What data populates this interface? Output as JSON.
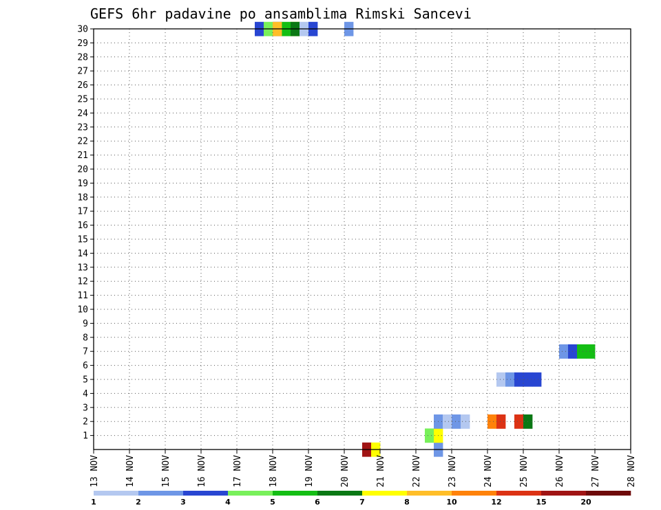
{
  "chart_data": {
    "type": "heatmap",
    "title": "GEFS 6hr padavine po ansamblima Rimski Sancevi",
    "xlabel": "",
    "ylabel": "",
    "y_range": [
      0,
      30
    ],
    "y_ticks": [
      1,
      2,
      3,
      4,
      5,
      6,
      7,
      8,
      9,
      10,
      11,
      12,
      13,
      14,
      15,
      16,
      17,
      18,
      19,
      20,
      21,
      22,
      23,
      24,
      25,
      26,
      27,
      28,
      29,
      30
    ],
    "x_ticks": [
      "13 NOV",
      "14 NOV",
      "15 NOV",
      "16 NOV",
      "17 NOV",
      "18 NOV",
      "19 NOV",
      "20 NOV",
      "21 NOV",
      "22 NOV",
      "23 NOV",
      "24 NOV",
      "25 NOV",
      "26 NOV",
      "27 NOV",
      "28 NOV"
    ],
    "x_steps_total": 60,
    "grid": true,
    "legend": {
      "position": "bottom",
      "colors": [
        "#b4c8f0",
        "#6e96e6",
        "#2846d2",
        "#78f05a",
        "#14be14",
        "#0a7814",
        "#ffff00",
        "#ffbe28",
        "#ff820a",
        "#dc3214",
        "#a01414",
        "#6e0a0a"
      ],
      "labels": [
        "1",
        "2",
        "3",
        "4",
        "5",
        "6",
        "7",
        "8",
        "10",
        "12",
        "15",
        "20"
      ]
    },
    "cells": [
      [
        20,
        30,
        2
      ],
      [
        21,
        30,
        4
      ],
      [
        22,
        30,
        6
      ],
      [
        28,
        30,
        1
      ],
      [
        18,
        30,
        2
      ],
      [
        19,
        30,
        3
      ],
      [
        20,
        30,
        7
      ],
      [
        22,
        30,
        5
      ],
      [
        23,
        30,
        0
      ],
      [
        24,
        30,
        2
      ],
      [
        30,
        0,
        10
      ],
      [
        31,
        0,
        6
      ],
      [
        38,
        0,
        1
      ],
      [
        37,
        1,
        3
      ],
      [
        38,
        1,
        6
      ],
      [
        38,
        2,
        1
      ],
      [
        39,
        2,
        0
      ],
      [
        40,
        2,
        1
      ],
      [
        41,
        2,
        0
      ],
      [
        44,
        2,
        8
      ],
      [
        45,
        2,
        9
      ],
      [
        47,
        2,
        9
      ],
      [
        48,
        2,
        5
      ],
      [
        45,
        5,
        0
      ],
      [
        46,
        5,
        1
      ],
      [
        47,
        5,
        2
      ],
      [
        48,
        5,
        2
      ],
      [
        49,
        5,
        2
      ],
      [
        52,
        7,
        1
      ],
      [
        53,
        7,
        2
      ],
      [
        54,
        7,
        4
      ],
      [
        55,
        7,
        4
      ]
    ]
  }
}
